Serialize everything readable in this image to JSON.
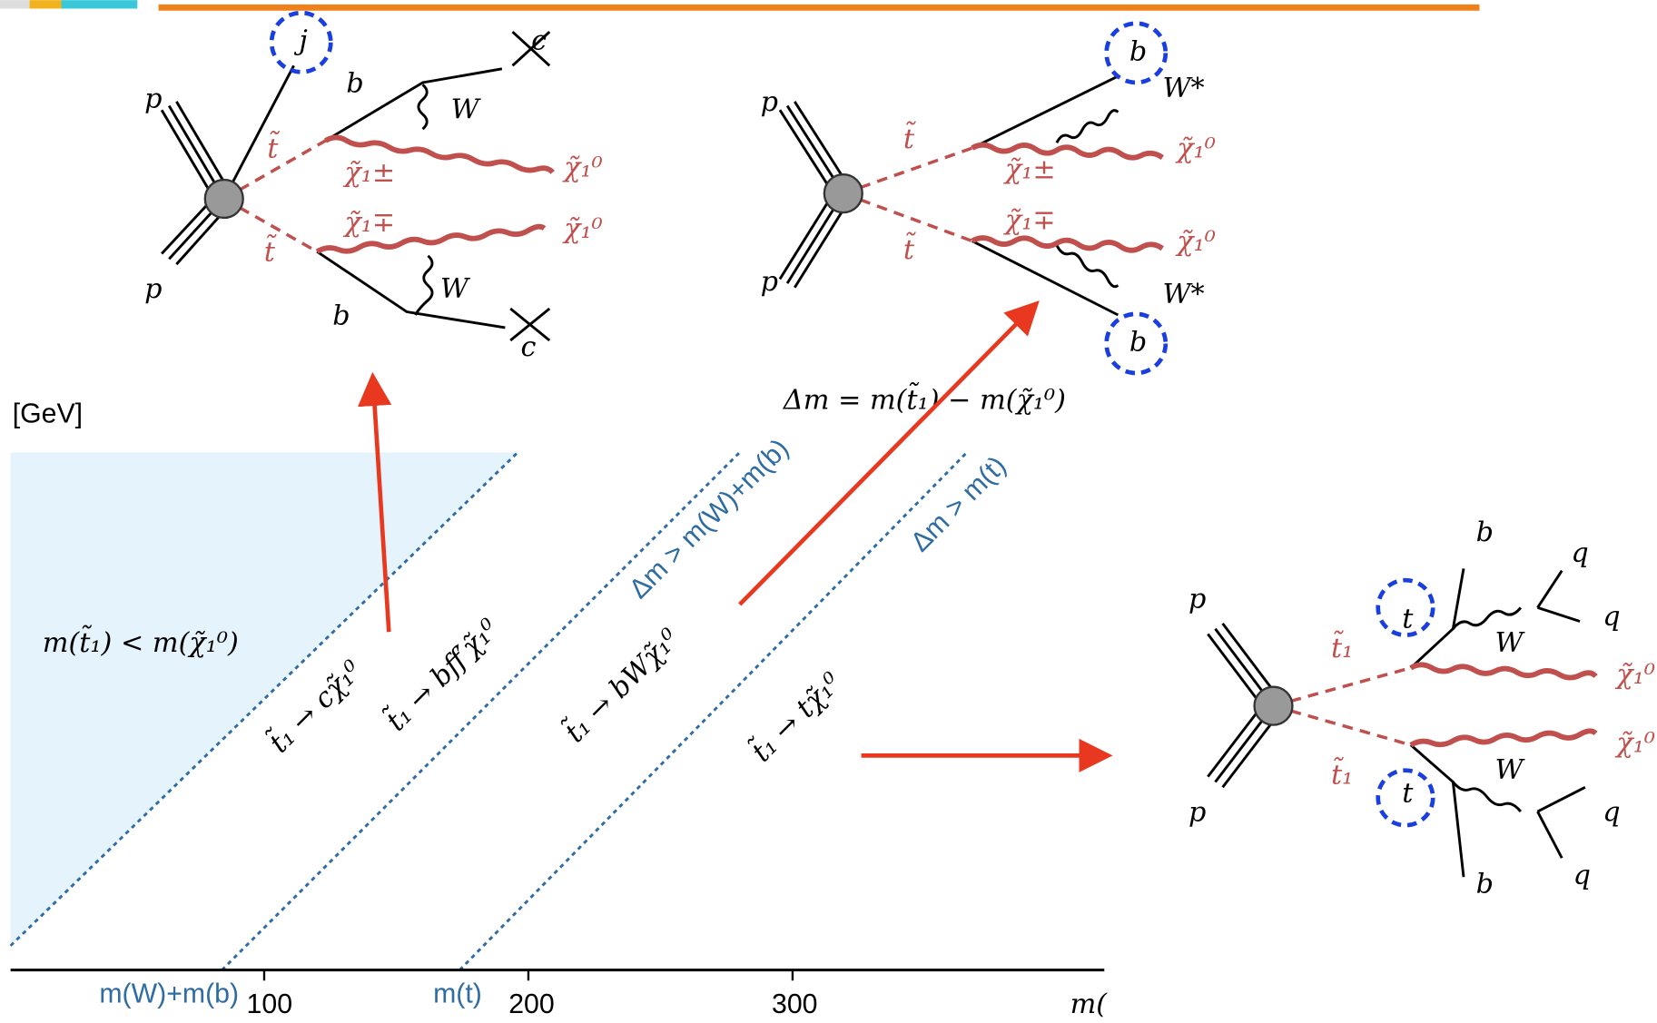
{
  "plot": {
    "unit": "[GeV]",
    "x_ticks": [
      "100",
      "200",
      "300"
    ],
    "x_axis_label": "m(",
    "thresholds": [
      "m(W)+m(b)",
      "m(t)"
    ],
    "boundary_labels": [
      "Δm > m(W)+m(b)",
      "Δm > m(t)"
    ],
    "region_label": "m(t̃₁) < m(χ̃₁⁰)",
    "decays": [
      "t̃₁ → cχ̃₁⁰",
      "t̃₁ → bff′χ̃₁⁰",
      "t̃₁ → bWχ̃₁⁰",
      "t̃₁ → tχ̃₁⁰"
    ]
  },
  "delta_m": "Δm = m(t̃₁) − m(χ̃₁⁰)",
  "diagrams": [
    {
      "labels": [
        "j",
        "p",
        "p",
        "b",
        "b",
        "W",
        "W",
        "c",
        "c",
        "t̃",
        "t̃",
        "χ̃₁±",
        "χ̃₁∓",
        "χ̃₁⁰",
        "χ̃₁⁰"
      ]
    },
    {
      "labels": [
        "b",
        "b",
        "p",
        "p",
        "W*",
        "W*",
        "t̃",
        "t̃",
        "χ̃₁±",
        "χ̃₁∓",
        "χ̃₁⁰",
        "χ̃₁⁰"
      ]
    },
    {
      "labels": [
        "p",
        "p",
        "t",
        "t",
        "t̃₁",
        "t̃₁",
        "W",
        "W",
        "b",
        "b",
        "q",
        "q",
        "q",
        "q",
        "χ̃₁⁰",
        "χ̃₁⁰"
      ]
    }
  ]
}
